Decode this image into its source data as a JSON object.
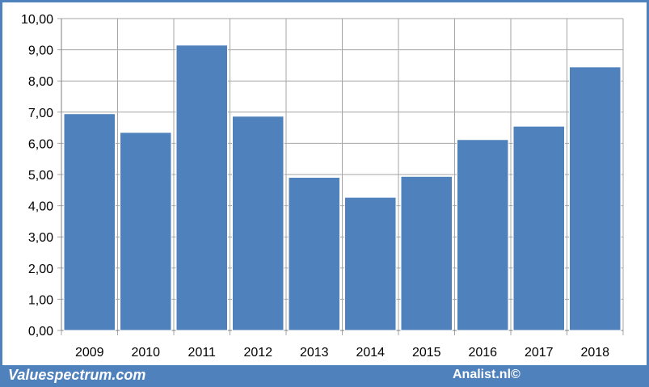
{
  "chart_data": {
    "type": "bar",
    "categories": [
      "2009",
      "2010",
      "2011",
      "2012",
      "2013",
      "2014",
      "2015",
      "2016",
      "2017",
      "2018"
    ],
    "values": [
      6.95,
      6.35,
      9.15,
      6.87,
      4.91,
      4.27,
      4.94,
      6.12,
      6.55,
      8.45
    ],
    "ylim": [
      0,
      10
    ],
    "yticks": [
      "0,00",
      "1,00",
      "2,00",
      "3,00",
      "4,00",
      "5,00",
      "6,00",
      "7,00",
      "8,00",
      "9,00",
      "10,00"
    ],
    "grid": true,
    "bar_color": "#4f81bd"
  },
  "footer": {
    "left": "Valuespectrum.com",
    "right": "Analist.nl©"
  },
  "colors": {
    "accent": "#4f81bd",
    "grid": "#a6a6a6"
  }
}
